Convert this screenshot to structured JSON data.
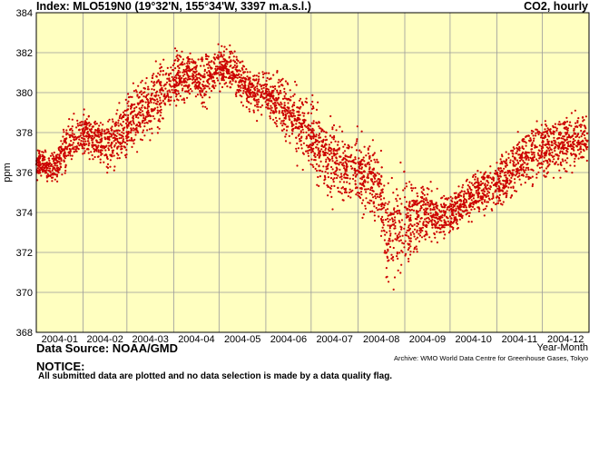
{
  "header": {
    "index": "Index: MLO519N0 (19°32'N, 155°34'W, 3397 m.a.s.l.)",
    "parameter": "CO2, hourly"
  },
  "footer": {
    "source": "Data Source: NOAA/GMD",
    "archive": "Archive: WMO World Data Centre for Greenhouse Gases, Tokyo",
    "notice_title": "NOTICE:",
    "notice_text": "All submitted data are plotted and no data selection is made by a data quality flag."
  },
  "colors": {
    "plot_background": "#ffffc0",
    "grid": "#9a9a9a",
    "series": "#cc0000"
  },
  "chart_data": {
    "type": "scatter",
    "xlabel": "Year-Month",
    "ylabel": "ppm",
    "ylim": [
      368,
      384
    ],
    "xlim": [
      "2004-01-01",
      "2005-01-01"
    ],
    "grid": true,
    "y_ticks": [
      "368",
      "370",
      "372",
      "374",
      "376",
      "378",
      "380",
      "382",
      "384"
    ],
    "x_ticks": [
      "2004-01",
      "2004-02",
      "2004-03",
      "2004-04",
      "2004-05",
      "2004-06",
      "2004-07",
      "2004-08",
      "2004-09",
      "2004-10",
      "2004-11",
      "2004-12"
    ],
    "series": [
      {
        "x": [
          "2004-01-01",
          "2004-01-05",
          "2004-01-10",
          "2004-01-15",
          "2004-01-20",
          "2004-01-25",
          "2004-02-01",
          "2004-02-05",
          "2004-02-10",
          "2004-02-15",
          "2004-02-20",
          "2004-02-25",
          "2004-03-01",
          "2004-03-05",
          "2004-03-10",
          "2004-03-15",
          "2004-03-20",
          "2004-03-25",
          "2004-04-01",
          "2004-04-05",
          "2004-04-10",
          "2004-04-15",
          "2004-04-20",
          "2004-04-25",
          "2004-05-01",
          "2004-05-05",
          "2004-05-10",
          "2004-05-15",
          "2004-05-20",
          "2004-05-25",
          "2004-06-01",
          "2004-06-05",
          "2004-06-10",
          "2004-06-15",
          "2004-06-20",
          "2004-06-25",
          "2004-07-01",
          "2004-07-05",
          "2004-07-10",
          "2004-07-15",
          "2004-07-20",
          "2004-07-25",
          "2004-08-01",
          "2004-08-05",
          "2004-08-10",
          "2004-08-15",
          "2004-08-20",
          "2004-08-25",
          "2004-09-01",
          "2004-09-05",
          "2004-09-10",
          "2004-09-15",
          "2004-09-20",
          "2004-09-25",
          "2004-10-01",
          "2004-10-05",
          "2004-10-10",
          "2004-10-15",
          "2004-10-20",
          "2004-10-25",
          "2004-11-01",
          "2004-11-05",
          "2004-11-10",
          "2004-11-15",
          "2004-11-20",
          "2004-11-25",
          "2004-12-01",
          "2004-12-05",
          "2004-12-10",
          "2004-12-15",
          "2004-12-20",
          "2004-12-25",
          "2004-12-31"
        ],
        "y": [
          376.4,
          376.6,
          376.2,
          376.5,
          377.2,
          377.8,
          378.0,
          377.9,
          377.6,
          377.3,
          377.5,
          377.9,
          378.3,
          378.6,
          379.0,
          379.3,
          379.8,
          380.1,
          380.6,
          380.8,
          380.9,
          381.0,
          380.4,
          380.9,
          381.2,
          381.4,
          381.0,
          380.6,
          380.2,
          379.9,
          380.0,
          379.8,
          379.4,
          379.1,
          378.6,
          378.3,
          378.0,
          377.4,
          377.0,
          376.7,
          376.5,
          376.3,
          376.1,
          375.8,
          375.6,
          375.3,
          373.0,
          373.2,
          373.4,
          373.6,
          373.8,
          374.2,
          373.9,
          373.8,
          373.8,
          374.2,
          374.5,
          374.8,
          375.0,
          375.2,
          375.4,
          375.6,
          376.0,
          376.5,
          376.8,
          377.0,
          377.1,
          377.2,
          377.4,
          377.5,
          377.4,
          377.6,
          377.6
        ],
        "spread": [
          0.3,
          0.3,
          0.3,
          0.4,
          0.5,
          0.5,
          0.5,
          0.5,
          0.5,
          0.6,
          0.6,
          0.6,
          0.7,
          0.7,
          0.7,
          0.7,
          0.8,
          0.8,
          0.6,
          0.6,
          0.5,
          0.5,
          0.8,
          0.5,
          0.5,
          0.4,
          0.5,
          0.5,
          0.5,
          0.5,
          0.5,
          0.6,
          0.7,
          0.7,
          0.8,
          0.8,
          0.8,
          0.9,
          0.9,
          0.9,
          0.9,
          0.8,
          0.8,
          0.8,
          0.8,
          0.8,
          1.3,
          1.2,
          1.2,
          1.0,
          0.8,
          0.7,
          0.6,
          0.5,
          0.5,
          0.5,
          0.5,
          0.5,
          0.5,
          0.5,
          0.5,
          0.6,
          0.7,
          0.7,
          0.7,
          0.7,
          0.6,
          0.6,
          0.6,
          0.6,
          0.7,
          0.6,
          0.6
        ]
      }
    ]
  }
}
